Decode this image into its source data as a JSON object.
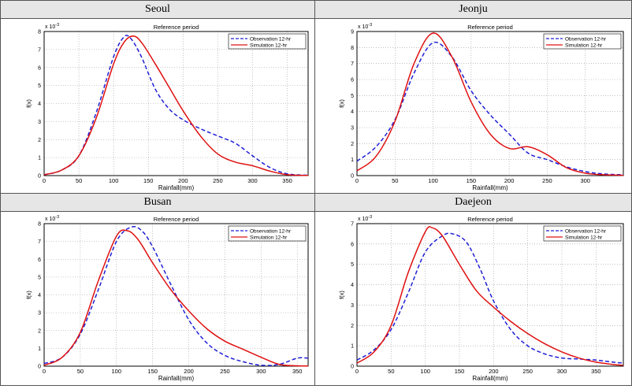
{
  "panels": [
    {
      "name": "Seoul"
    },
    {
      "name": "Jeonju"
    },
    {
      "name": "Busan"
    },
    {
      "name": "Daejeon"
    }
  ],
  "chart_data": [
    {
      "type": "line",
      "panel": "Seoul",
      "title": "Reference period",
      "xlabel": "Rainfall(mm)",
      "ylabel": "f(x)",
      "y_scale_label": "x 10",
      "y_scale_exp": "-3",
      "xlim": [
        0,
        380
      ],
      "ylim": [
        0,
        8
      ],
      "xticks": [
        0,
        50,
        100,
        150,
        200,
        250,
        300,
        350
      ],
      "yticks": [
        0,
        1,
        2,
        3,
        4,
        5,
        6,
        7,
        8
      ],
      "legend_position": "top-right",
      "series": [
        {
          "name": "Observation 12-hr",
          "color": "#1f1fd6",
          "style": "dashed",
          "x": [
            0,
            25,
            50,
            75,
            100,
            115,
            125,
            140,
            160,
            180,
            200,
            225,
            250,
            275,
            300,
            325,
            350,
            380
          ],
          "y": [
            0.05,
            0.3,
            1.1,
            3.5,
            6.6,
            7.7,
            7.6,
            6.6,
            4.8,
            3.7,
            3.1,
            2.6,
            2.2,
            1.8,
            1.1,
            0.45,
            0.1,
            0.02
          ]
        },
        {
          "name": "Simulation 12-hr",
          "color": "#e01010",
          "style": "solid",
          "x": [
            0,
            25,
            50,
            75,
            100,
            115,
            128,
            140,
            160,
            180,
            200,
            225,
            250,
            275,
            300,
            325,
            350,
            380
          ],
          "y": [
            0.05,
            0.3,
            1.1,
            3.2,
            6.2,
            7.4,
            7.75,
            7.4,
            6.2,
            4.9,
            3.6,
            2.2,
            1.2,
            0.75,
            0.55,
            0.25,
            0.05,
            0.01
          ]
        }
      ]
    },
    {
      "type": "line",
      "panel": "Jeonju",
      "title": "Reference period",
      "xlabel": "Rainfall(mm)",
      "ylabel": "f(x)",
      "y_scale_label": "x 10",
      "y_scale_exp": "-3",
      "xlim": [
        0,
        350
      ],
      "ylim": [
        0,
        9
      ],
      "xticks": [
        0,
        50,
        100,
        150,
        200,
        250,
        300
      ],
      "yticks": [
        0,
        1,
        2,
        3,
        4,
        5,
        6,
        7,
        8,
        9
      ],
      "legend_position": "top-right",
      "series": [
        {
          "name": "Observation 12-hr",
          "color": "#1f1fd6",
          "style": "dashed",
          "x": [
            0,
            25,
            50,
            75,
            100,
            125,
            150,
            175,
            200,
            225,
            250,
            275,
            300,
            325,
            350
          ],
          "y": [
            0.9,
            1.8,
            3.5,
            6.4,
            8.3,
            7.4,
            5.3,
            3.8,
            2.6,
            1.4,
            1.0,
            0.55,
            0.25,
            0.1,
            0.05
          ]
        },
        {
          "name": "Simulation 12-hr",
          "color": "#e01010",
          "style": "solid",
          "x": [
            0,
            25,
            50,
            75,
            100,
            125,
            150,
            175,
            200,
            225,
            250,
            275,
            300,
            325,
            350
          ],
          "y": [
            0.3,
            1.2,
            3.4,
            7.0,
            8.9,
            7.4,
            4.6,
            2.6,
            1.7,
            1.8,
            1.3,
            0.5,
            0.15,
            0.05,
            0.02
          ]
        }
      ]
    },
    {
      "type": "line",
      "panel": "Busan",
      "title": "Reference period",
      "xlabel": "Rainfall(mm)",
      "ylabel": "f(x)",
      "y_scale_label": "x 10",
      "y_scale_exp": "-3",
      "xlim": [
        0,
        365
      ],
      "ylim": [
        0,
        8
      ],
      "xticks": [
        0,
        50,
        100,
        150,
        200,
        250,
        300,
        350
      ],
      "yticks": [
        0,
        1,
        2,
        3,
        4,
        5,
        6,
        7,
        8
      ],
      "legend_position": "top-right",
      "series": [
        {
          "name": "Observation 12-hr",
          "color": "#1f1fd6",
          "style": "dashed",
          "x": [
            0,
            25,
            50,
            75,
            100,
            120,
            135,
            150,
            175,
            200,
            225,
            250,
            275,
            300,
            325,
            350,
            365
          ],
          "y": [
            0.15,
            0.5,
            1.8,
            4.3,
            7.0,
            7.8,
            7.6,
            6.7,
            4.6,
            2.6,
            1.3,
            0.6,
            0.25,
            0.05,
            0.1,
            0.45,
            0.45
          ]
        },
        {
          "name": "Simulation 12-hr",
          "color": "#e01010",
          "style": "solid",
          "x": [
            0,
            25,
            50,
            75,
            100,
            115,
            130,
            150,
            175,
            200,
            225,
            250,
            275,
            300,
            325,
            350,
            365
          ],
          "y": [
            0.05,
            0.5,
            1.9,
            4.8,
            7.3,
            7.6,
            7.1,
            5.8,
            4.3,
            3.1,
            2.1,
            1.4,
            0.95,
            0.5,
            0.1,
            0.02,
            0.01
          ]
        }
      ]
    },
    {
      "type": "line",
      "panel": "Daejeon",
      "title": "Reference period",
      "xlabel": "Rainfall(mm)",
      "ylabel": "f(x)",
      "y_scale_label": "x 10",
      "y_scale_exp": "-3",
      "xlim": [
        0,
        390
      ],
      "ylim": [
        0,
        7
      ],
      "xticks": [
        0,
        50,
        100,
        150,
        200,
        250,
        300,
        350
      ],
      "yticks": [
        0,
        1,
        2,
        3,
        4,
        5,
        6,
        7
      ],
      "legend_position": "top-right",
      "series": [
        {
          "name": "Observation 12-hr",
          "color": "#1f1fd6",
          "style": "dashed",
          "x": [
            0,
            25,
            50,
            75,
            100,
            125,
            140,
            160,
            180,
            200,
            225,
            250,
            275,
            300,
            325,
            350,
            375,
            390
          ],
          "y": [
            0.3,
            0.8,
            1.8,
            3.6,
            5.6,
            6.4,
            6.5,
            6.1,
            4.8,
            3.2,
            1.8,
            1.0,
            0.6,
            0.4,
            0.35,
            0.3,
            0.2,
            0.15
          ]
        },
        {
          "name": "Simulation 12-hr",
          "color": "#e01010",
          "style": "solid",
          "x": [
            0,
            25,
            50,
            75,
            100,
            110,
            125,
            150,
            175,
            200,
            225,
            250,
            275,
            300,
            325,
            350,
            375,
            390
          ],
          "y": [
            0.15,
            0.7,
            2.0,
            4.6,
            6.6,
            6.8,
            6.4,
            5.0,
            3.7,
            2.9,
            2.2,
            1.6,
            1.1,
            0.7,
            0.4,
            0.2,
            0.08,
            0.04
          ]
        }
      ]
    }
  ]
}
